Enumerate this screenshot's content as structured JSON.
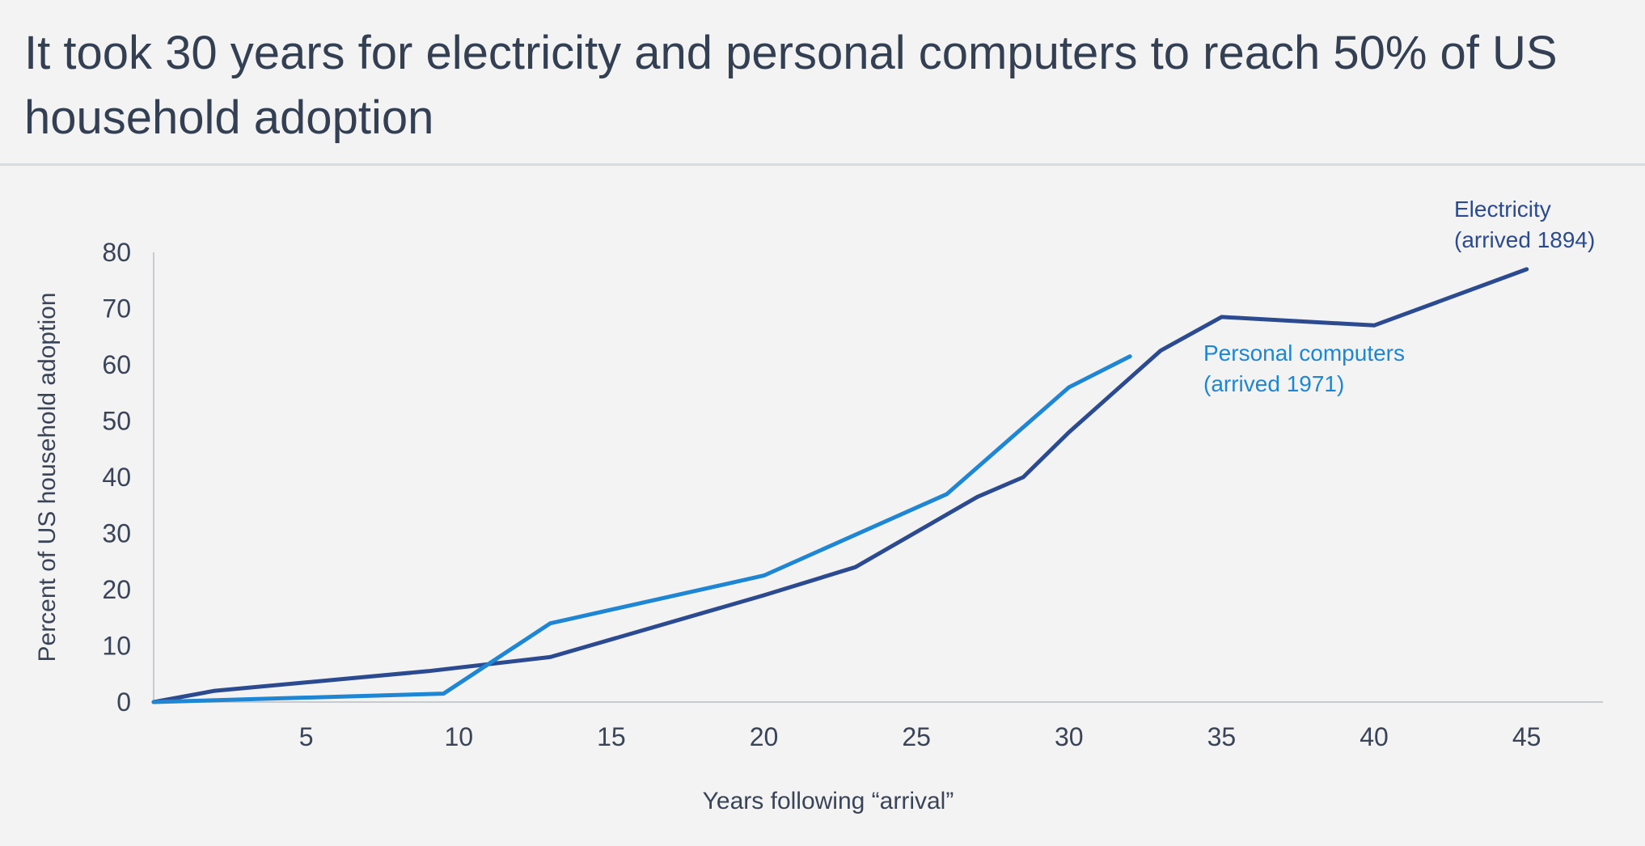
{
  "chart_data": {
    "type": "line",
    "title": "It took 30 years for electricity and personal computers to reach 50% of US household adoption",
    "xlabel": "Years following “arrival”",
    "ylabel": "Percent of US household adoption",
    "xlim": [
      0,
      47.5
    ],
    "ylim": [
      0,
      80
    ],
    "x_ticks": [
      5,
      10,
      15,
      20,
      25,
      30,
      35,
      40,
      45
    ],
    "y_ticks": [
      0,
      10,
      20,
      30,
      40,
      50,
      60,
      70,
      80
    ],
    "grid": false,
    "series": [
      {
        "name": "Electricity",
        "label_lines": [
          "Electricity",
          "(arrived 1894)"
        ],
        "color": "#2b4a8f",
        "points": [
          [
            0,
            0
          ],
          [
            2,
            2
          ],
          [
            9,
            5.5
          ],
          [
            13,
            8
          ],
          [
            20,
            19
          ],
          [
            23,
            24
          ],
          [
            27,
            36.5
          ],
          [
            28.5,
            40
          ],
          [
            30,
            48
          ],
          [
            33,
            62.5
          ],
          [
            35,
            68.5
          ],
          [
            40,
            67
          ],
          [
            45,
            77
          ]
        ]
      },
      {
        "name": "Personal computers",
        "label_lines": [
          "Personal computers",
          "(arrived 1971)"
        ],
        "color": "#1f86d3",
        "points": [
          [
            0,
            0
          ],
          [
            9.5,
            1.5
          ],
          [
            13,
            14
          ],
          [
            20,
            22.5
          ],
          [
            26,
            37
          ],
          [
            30,
            56
          ],
          [
            32,
            61.5
          ]
        ]
      }
    ]
  }
}
